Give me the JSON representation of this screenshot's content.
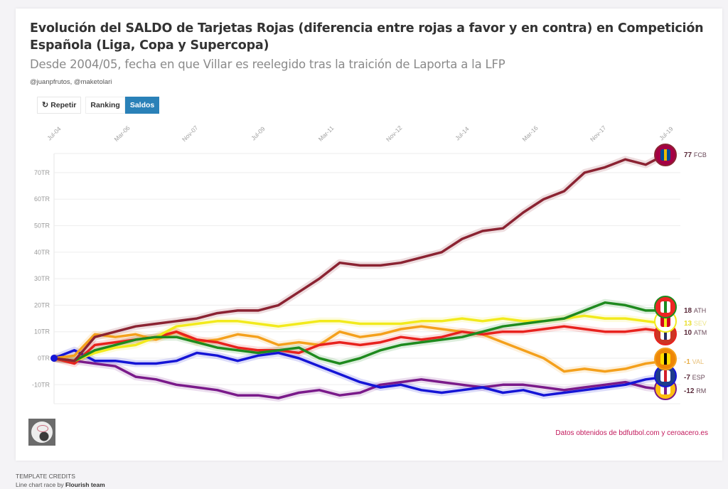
{
  "header": {
    "title": "Evolución del SALDO de Tarjetas Rojas (diferencia entre rojas a favor y en contra) en Competición Española (Liga, Copa y Supercopa)",
    "subtitle": "Desde 2004/05, fecha en que Villar es reelegido tras la traición de Laporta a la LFP",
    "authors": "@juanpfrutos, @maketolari"
  },
  "controls": {
    "repeat_icon": "↻",
    "repeat_label": "Repetir",
    "ranking_label": "Ranking",
    "saldos_label": "Saldos",
    "active": "Saldos"
  },
  "footer": {
    "source": "Datos obtenidos de bdfutbol.com y ceroacero.es",
    "credits_heading": "TEMPLATE CREDITS",
    "credits_text": "Line chart race by",
    "credits_author": "Flourish team"
  },
  "chart_data": {
    "type": "line",
    "title": "Evolución del SALDO de Tarjetas Rojas",
    "xlabel": "",
    "ylabel": "",
    "y_tick_suffix": "TR",
    "ylim": [
      -17,
      78
    ],
    "yticks": [
      -10,
      0,
      10,
      20,
      30,
      40,
      50,
      60,
      70
    ],
    "ytick_labels": [
      "-10TR",
      "0TR",
      "10TR",
      "20TR",
      "30TR",
      "40TR",
      "50TR",
      "60TR",
      "70TR"
    ],
    "xticks": [
      "Jul-04",
      "Mar-06",
      "Nov-07",
      "Jul-09",
      "Mar-11",
      "Nov-12",
      "Jul-14",
      "Mar-16",
      "Nov-17",
      "Jul-19"
    ],
    "x_range": [
      "Jul-04",
      "Jul-19"
    ],
    "x_months_span": 180,
    "grid": true,
    "legend": "end-labels-right",
    "x": [
      0,
      6,
      12,
      18,
      24,
      30,
      36,
      42,
      48,
      54,
      60,
      66,
      72,
      78,
      84,
      90,
      96,
      102,
      108,
      114,
      120,
      126,
      132,
      138,
      144,
      150,
      156,
      162,
      168,
      174,
      180
    ],
    "series": [
      {
        "name": "FCB",
        "final": 77,
        "color": "#8b2332",
        "badge": "fcb-crest",
        "values": [
          0,
          -1,
          8,
          10,
          12,
          13,
          14,
          15,
          17,
          18,
          18,
          20,
          25,
          30,
          36,
          35,
          35,
          36,
          38,
          40,
          45,
          48,
          49,
          55,
          60,
          63,
          70,
          72,
          75,
          73,
          77
        ]
      },
      {
        "name": "ATH",
        "final": 18,
        "color": "#1e8a1e",
        "badge": "ath-crest",
        "values": [
          0,
          -1,
          3,
          5,
          7,
          8,
          8,
          6,
          4,
          3,
          2,
          3,
          4,
          0,
          -2,
          0,
          3,
          5,
          6,
          7,
          8,
          10,
          12,
          13,
          14,
          15,
          18,
          21,
          20,
          18,
          18
        ]
      },
      {
        "name": "SEV",
        "final": 13,
        "color": "#f2ea1c",
        "badge": "sev-crest",
        "values": [
          0,
          -1,
          2,
          4,
          5,
          8,
          12,
          13,
          14,
          14,
          13,
          12,
          13,
          14,
          14,
          13,
          13,
          13,
          14,
          14,
          15,
          14,
          15,
          14,
          14,
          15,
          16,
          15,
          15,
          14,
          13
        ]
      },
      {
        "name": "ATM",
        "final": 10,
        "color": "#e8221e",
        "badge": "atm-crest",
        "values": [
          0,
          -2,
          5,
          6,
          7,
          8,
          10,
          7,
          6,
          4,
          3,
          3,
          2,
          5,
          6,
          5,
          6,
          8,
          7,
          8,
          10,
          9,
          10,
          10,
          11,
          12,
          11,
          10,
          10,
          11,
          10
        ]
      },
      {
        "name": "VAL",
        "final": -1,
        "color": "#f4a01c",
        "badge": "val-crest",
        "values": [
          0,
          1,
          9,
          8,
          9,
          7,
          10,
          6,
          7,
          9,
          8,
          5,
          6,
          5,
          10,
          8,
          9,
          11,
          12,
          11,
          10,
          9,
          6,
          3,
          0,
          -5,
          -4,
          -5,
          -4,
          -2,
          -1
        ]
      },
      {
        "name": "ESP",
        "final": -7,
        "color": "#1515d6",
        "badge": "esp-crest",
        "values": [
          0,
          3,
          -1,
          -1,
          -2,
          -2,
          -1,
          2,
          1,
          -1,
          1,
          2,
          0,
          -3,
          -6,
          -9,
          -11,
          -10,
          -12,
          -13,
          -12,
          -11,
          -13,
          -12,
          -14,
          -13,
          -12,
          -11,
          -10,
          -8,
          -7
        ]
      },
      {
        "name": "RM",
        "final": -12,
        "color": "#7a1a8a",
        "badge": "rm-crest",
        "values": [
          0,
          -1,
          -2,
          -3,
          -7,
          -8,
          -10,
          -11,
          -12,
          -14,
          -14,
          -15,
          -13,
          -12,
          -14,
          -13,
          -10,
          -9,
          -8,
          -9,
          -10,
          -11,
          -10,
          -10,
          -11,
          -12,
          -11,
          -10,
          -9,
          -11,
          -12
        ]
      }
    ]
  }
}
